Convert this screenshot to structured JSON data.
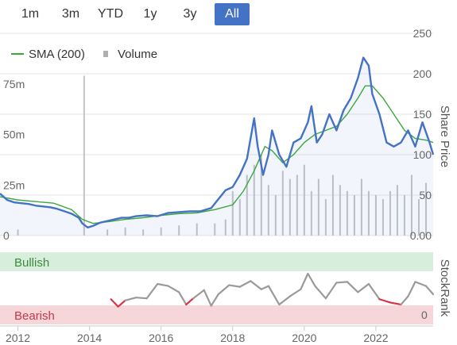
{
  "range_selector": {
    "buttons": [
      "1m",
      "3m",
      "YTD",
      "1y",
      "3y",
      "All"
    ],
    "selected": "All"
  },
  "colors": {
    "price": "#4472c4",
    "sma": "#3aa83a",
    "volume": "#c4c4c8",
    "bullish_band": "#d8eedd",
    "bearish_band": "#f6d6d9",
    "rank_bullish": "#9a9a9a",
    "rank_bearish": "#d83545",
    "accent": "#4472c4"
  },
  "chart_data": [
    {
      "type": "line",
      "name": "price-chart",
      "legend": [
        "SMA (200)",
        "Volume"
      ],
      "legend_position": "top-left",
      "ylabel": "Share Price",
      "ylim": [
        0,
        250
      ],
      "y_ticks": [
        "250",
        "200",
        "150",
        "100",
        "50",
        "0.00"
      ],
      "volume_ticks": [
        "75m",
        "50m",
        "25m",
        "0"
      ],
      "volume_ylim": [
        0,
        100
      ],
      "grid": true,
      "x_ticks": [
        "2012",
        "2014",
        "2016",
        "2018",
        "2020",
        "2022"
      ],
      "xlim": [
        2011.5,
        2023.6
      ],
      "series": [
        {
          "name": "Share Price",
          "x": [
            2011.5,
            2011.7,
            2011.9,
            2012.1,
            2012.3,
            2012.5,
            2012.7,
            2012.9,
            2013.1,
            2013.3,
            2013.5,
            2013.7,
            2013.8,
            2013.95,
            2014.1,
            2014.3,
            2014.5,
            2014.7,
            2014.9,
            2015.1,
            2015.3,
            2015.6,
            2015.9,
            2016.2,
            2016.5,
            2016.8,
            2017.1,
            2017.4,
            2017.6,
            2017.8,
            2018.0,
            2018.2,
            2018.4,
            2018.6,
            2018.7,
            2018.85,
            2019.0,
            2019.1,
            2019.3,
            2019.5,
            2019.7,
            2019.9,
            2020.1,
            2020.2,
            2020.35,
            2020.5,
            2020.7,
            2020.9,
            2021.1,
            2021.3,
            2021.5,
            2021.65,
            2021.8,
            2021.9,
            2022.1,
            2022.3,
            2022.5,
            2022.7,
            2022.9,
            2023.1,
            2023.3,
            2023.5,
            2023.6
          ],
          "values": [
            52,
            44,
            41,
            40,
            39,
            37,
            36,
            35,
            33,
            30,
            27,
            22,
            15,
            10,
            12,
            16,
            18,
            20,
            22,
            22,
            24,
            25,
            24,
            28,
            29,
            30,
            30,
            34,
            45,
            56,
            60,
            75,
            95,
            145,
            110,
            75,
            100,
            130,
            100,
            85,
            115,
            120,
            140,
            160,
            115,
            125,
            150,
            130,
            155,
            170,
            195,
            220,
            210,
            175,
            150,
            115,
            110,
            115,
            130,
            110,
            140,
            115,
            100
          ]
        },
        {
          "name": "SMA (200)",
          "x": [
            2011.5,
            2012.0,
            2012.5,
            2013.0,
            2013.5,
            2013.8,
            2014.1,
            2014.5,
            2015.0,
            2015.5,
            2016.0,
            2016.5,
            2017.0,
            2017.5,
            2018.0,
            2018.3,
            2018.6,
            2018.9,
            2019.1,
            2019.4,
            2019.7,
            2020.0,
            2020.3,
            2020.6,
            2020.9,
            2021.2,
            2021.5,
            2021.7,
            2021.9,
            2022.2,
            2022.5,
            2022.8,
            2023.1,
            2023.4,
            2023.6
          ],
          "values": [
            48,
            44,
            42,
            40,
            32,
            20,
            15,
            17,
            20,
            22,
            25,
            27,
            28,
            32,
            38,
            55,
            80,
            110,
            105,
            90,
            100,
            115,
            125,
            130,
            135,
            150,
            170,
            185,
            185,
            170,
            150,
            130,
            120,
            118,
            115
          ]
        },
        {
          "name": "Volume",
          "type": "bar",
          "x": [
            2012.0,
            2013.85,
            2014.5,
            2015.0,
            2015.5,
            2016.0,
            2016.5,
            2017.0,
            2017.5,
            2017.8,
            2018.0,
            2018.2,
            2018.4,
            2018.6,
            2018.8,
            2019.0,
            2019.2,
            2019.4,
            2019.6,
            2019.8,
            2020.0,
            2020.2,
            2020.4,
            2020.6,
            2020.8,
            2021.0,
            2021.2,
            2021.4,
            2021.6,
            2021.8,
            2022.0,
            2022.2,
            2022.4,
            2022.6,
            2022.8,
            2023.0,
            2023.2,
            2023.4
          ],
          "values": [
            3,
            79,
            3,
            4,
            3,
            4,
            5,
            6,
            6,
            8,
            22,
            18,
            30,
            35,
            40,
            25,
            20,
            32,
            28,
            30,
            35,
            22,
            28,
            18,
            30,
            25,
            22,
            20,
            28,
            22,
            20,
            18,
            22,
            25,
            20,
            30,
            18,
            26
          ]
        }
      ]
    },
    {
      "type": "line",
      "name": "stockrank-chart",
      "ylabel": "StockRank",
      "bands": [
        "Bullish",
        "Bearish"
      ],
      "ylim": [
        0,
        100
      ],
      "y_ticks": [
        "0"
      ],
      "series": [
        {
          "name": "StockRank",
          "x": [
            2014.6,
            2014.8,
            2015.0,
            2015.3,
            2015.6,
            2015.9,
            2016.2,
            2016.5,
            2016.7,
            2016.9,
            2017.2,
            2017.4,
            2017.6,
            2017.9,
            2018.2,
            2018.5,
            2018.8,
            2019.0,
            2019.3,
            2019.6,
            2019.9,
            2020.1,
            2020.3,
            2020.6,
            2020.9,
            2021.2,
            2021.5,
            2021.8,
            2022.1,
            2022.4,
            2022.7,
            2022.9,
            2023.1,
            2023.4,
            2023.6
          ],
          "values": [
            38,
            20,
            35,
            42,
            40,
            75,
            70,
            55,
            25,
            40,
            60,
            22,
            50,
            72,
            68,
            82,
            62,
            70,
            25,
            45,
            62,
            100,
            70,
            40,
            78,
            80,
            55,
            75,
            38,
            30,
            25,
            45,
            80,
            70,
            50
          ]
        }
      ]
    }
  ]
}
